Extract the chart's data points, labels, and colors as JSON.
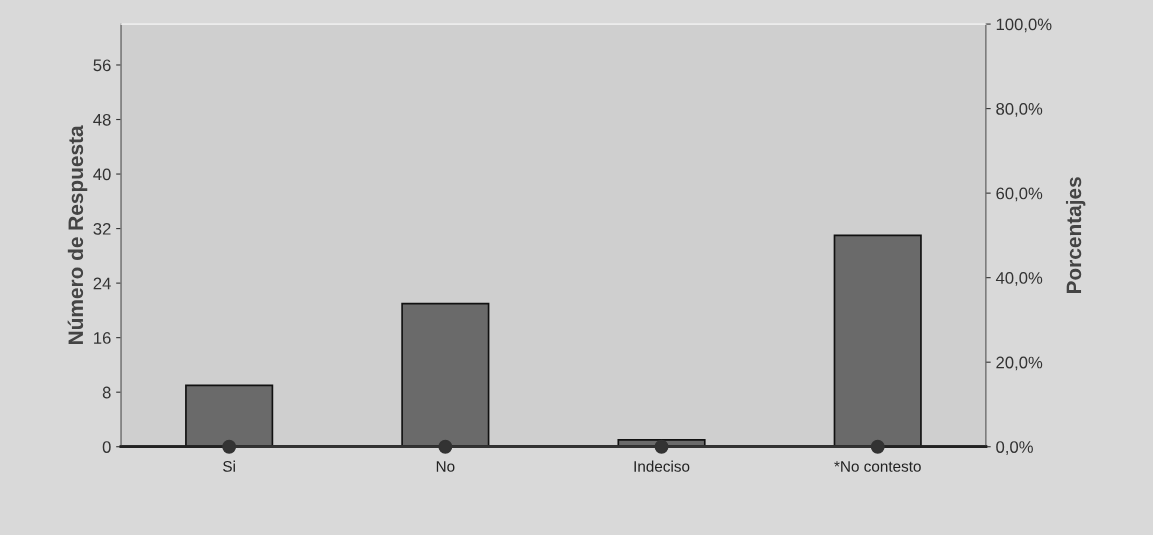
{
  "chart_data": {
    "type": "bar",
    "ylabel": "Número de Respuesta",
    "y2label": "Porcentajes",
    "categories": [
      "Si",
      "No",
      "Indeciso",
      "*No contesto"
    ],
    "series": [
      {
        "color": "#6a6a6a",
        "values": [
          9,
          21,
          1,
          31
        ]
      },
      {
        "type": "line",
        "axis": "y2",
        "color": "#333333",
        "marker": "circle",
        "values": [
          0,
          0,
          0,
          0
        ]
      }
    ],
    "ylim": [
      0,
      62
    ],
    "yticks": [
      0,
      8,
      16,
      24,
      32,
      40,
      48,
      56
    ],
    "y2lim": [
      0,
      100
    ],
    "y2ticks": [
      {
        "value": 0,
        "label": "0,0%"
      },
      {
        "value": 20,
        "label": "20,0%"
      },
      {
        "value": 40,
        "label": "40,0%"
      },
      {
        "value": 60,
        "label": "60,0%"
      },
      {
        "value": 80,
        "label": "80,0%"
      },
      {
        "value": 100,
        "label": "100,0%"
      }
    ],
    "grid": false,
    "legend": false
  }
}
